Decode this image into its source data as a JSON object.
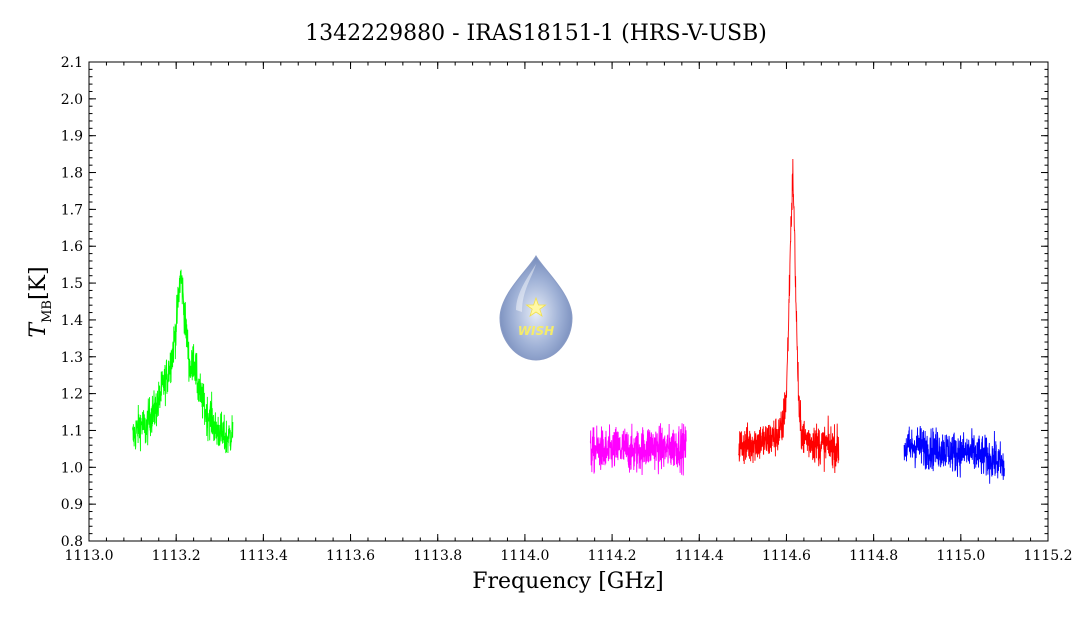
{
  "chart_data": {
    "type": "line",
    "title": "1342229880 - IRAS18151-1 (HRS-V-USB)",
    "xlabel": "Frequency [GHz]",
    "ylabel_main": "T",
    "ylabel_sub": "MB",
    "ylabel_unit": "[K]",
    "xlim": [
      1113.0,
      1115.2
    ],
    "ylim": [
      0.8,
      2.1
    ],
    "x_major_ticks": [
      1113.0,
      1113.2,
      1113.4,
      1113.6,
      1113.8,
      1114.0,
      1114.2,
      1114.4,
      1114.6,
      1114.8,
      1115.0,
      1115.2
    ],
    "x_tick_labels": [
      "1113.0",
      "1113.2",
      "1113.4",
      "1113.6",
      "1113.8",
      "1114.0",
      "1114.2",
      "1114.4",
      "1114.6",
      "1114.8",
      "1115.0",
      "1115.2"
    ],
    "y_major_ticks": [
      0.8,
      0.9,
      1.0,
      1.1,
      1.2,
      1.3,
      1.4,
      1.5,
      1.6,
      1.7,
      1.8,
      1.9,
      2.0,
      2.1
    ],
    "y_tick_labels": [
      "0.8",
      "0.9",
      "1.0",
      "1.1",
      "1.2",
      "1.3",
      "1.4",
      "1.5",
      "1.6",
      "1.7",
      "1.8",
      "1.9",
      "2.0",
      "2.1"
    ],
    "grid": false,
    "logo": {
      "text": "WISH"
    },
    "series": [
      {
        "color": "#00ff00",
        "x": [
          1113.1,
          1113.11,
          1113.12,
          1113.13,
          1113.14,
          1113.15,
          1113.16,
          1113.17,
          1113.18,
          1113.19,
          1113.2,
          1113.205,
          1113.21,
          1113.215,
          1113.22,
          1113.225,
          1113.23,
          1113.235,
          1113.24,
          1113.25,
          1113.26,
          1113.27,
          1113.28,
          1113.29,
          1113.3,
          1113.31,
          1113.32,
          1113.33
        ],
        "y": [
          1.08,
          1.1,
          1.12,
          1.1,
          1.14,
          1.15,
          1.18,
          1.22,
          1.25,
          1.3,
          1.38,
          1.46,
          1.52,
          1.48,
          1.4,
          1.35,
          1.28,
          1.26,
          1.3,
          1.22,
          1.18,
          1.14,
          1.14,
          1.1,
          1.1,
          1.08,
          1.08,
          1.1
        ],
        "noise": 0.05
      },
      {
        "color": "#ff00ff",
        "x": [
          1114.15,
          1114.17,
          1114.19,
          1114.21,
          1114.23,
          1114.25,
          1114.27,
          1114.29,
          1114.31,
          1114.33,
          1114.35,
          1114.37
        ],
        "y": [
          1.04,
          1.05,
          1.04,
          1.05,
          1.05,
          1.04,
          1.05,
          1.06,
          1.05,
          1.05,
          1.06,
          1.05
        ],
        "noise": 0.055
      },
      {
        "color": "#ff0000",
        "x": [
          1114.49,
          1114.51,
          1114.53,
          1114.55,
          1114.57,
          1114.59,
          1114.6,
          1114.605,
          1114.61,
          1114.615,
          1114.62,
          1114.625,
          1114.63,
          1114.64,
          1114.66,
          1114.68,
          1114.7,
          1114.72
        ],
        "y": [
          1.06,
          1.06,
          1.07,
          1.07,
          1.08,
          1.1,
          1.2,
          1.4,
          1.65,
          1.8,
          1.55,
          1.3,
          1.12,
          1.08,
          1.07,
          1.06,
          1.06,
          1.05
        ],
        "noise": 0.05
      },
      {
        "color": "#0000ff",
        "x": [
          1114.87,
          1114.9,
          1114.93,
          1114.96,
          1114.99,
          1115.02,
          1115.05,
          1115.08,
          1115.1
        ],
        "y": [
          1.05,
          1.06,
          1.05,
          1.05,
          1.04,
          1.04,
          1.03,
          1.02,
          1.0
        ],
        "noise": 0.05
      }
    ]
  }
}
